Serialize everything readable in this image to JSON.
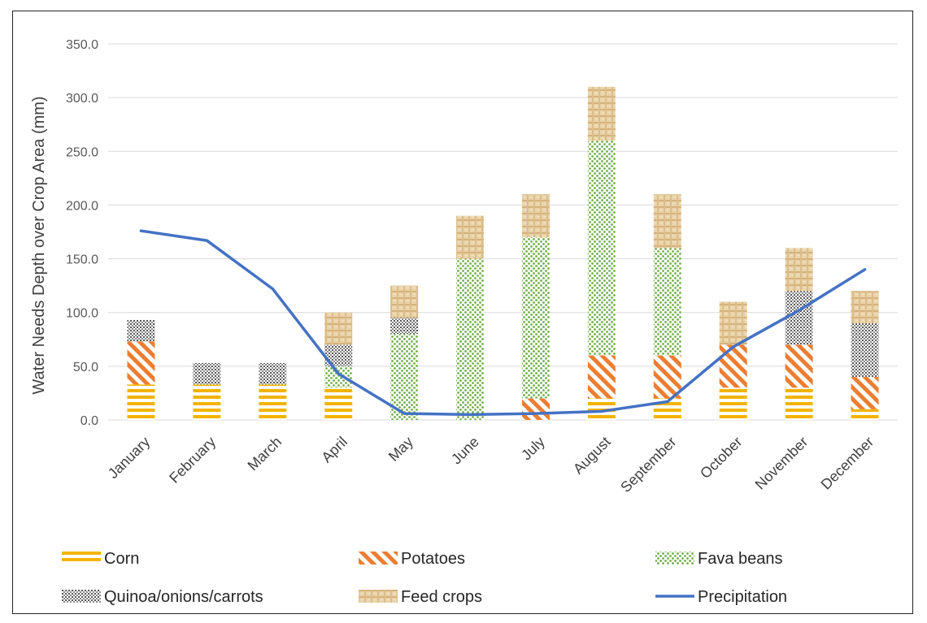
{
  "chart_data": {
    "type": "bar",
    "stacked": true,
    "categories": [
      "January",
      "February",
      "March",
      "April",
      "May",
      "June",
      "July",
      "August",
      "September",
      "October",
      "November",
      "December"
    ],
    "ylabel": "Water Needs Depth over Crop Area (mm)",
    "xlabel": "",
    "ylim": [
      0,
      350
    ],
    "yticks": [
      "0.0",
      "50.0",
      "100.0",
      "150.0",
      "200.0",
      "250.0",
      "300.0",
      "350.0"
    ],
    "grid": true,
    "legend_position": "bottom",
    "series": [
      {
        "name": "Corn",
        "pattern": "horizontal-stripes",
        "color": "#f2b400",
        "values": [
          33,
          33,
          33,
          30,
          0,
          0,
          0,
          20,
          20,
          30,
          30,
          10
        ]
      },
      {
        "name": "Potatoes",
        "pattern": "diagonal-stripes",
        "color": "#ed7d31",
        "values": [
          40,
          0,
          0,
          0,
          0,
          0,
          20,
          40,
          40,
          40,
          40,
          30
        ]
      },
      {
        "name": "Fava beans",
        "pattern": "dots",
        "color": "#70ad47",
        "values": [
          0,
          0,
          0,
          20,
          80,
          150,
          150,
          200,
          100,
          0,
          0,
          0
        ]
      },
      {
        "name": "Quinoa/onions/carrots",
        "pattern": "grid",
        "color": "#7f7f7f",
        "values": [
          20,
          20,
          20,
          20,
          15,
          0,
          0,
          0,
          0,
          0,
          50,
          50
        ]
      },
      {
        "name": "Feed crops",
        "pattern": "weave",
        "color": "#d9b98a",
        "values": [
          0,
          0,
          0,
          30,
          30,
          40,
          40,
          50,
          50,
          40,
          40,
          30
        ]
      }
    ],
    "line_series": [
      {
        "name": "Precipitation",
        "color": "#4472c4",
        "values": [
          176,
          167,
          122,
          43,
          6,
          5,
          6,
          8,
          17,
          68,
          102,
          140
        ]
      }
    ]
  }
}
